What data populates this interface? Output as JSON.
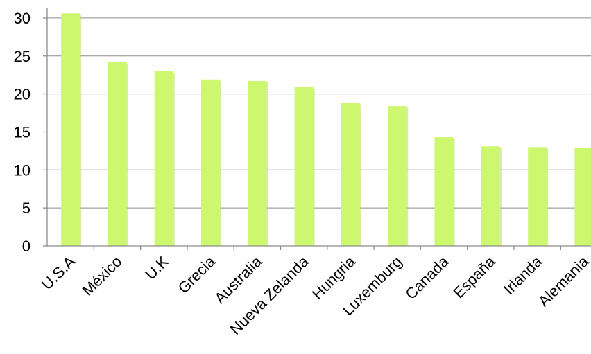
{
  "chart_data": {
    "type": "bar",
    "title": "",
    "xlabel": "",
    "ylabel": "",
    "categories": [
      "U.S.A",
      "México",
      "U.K",
      "Grecia",
      "Australia",
      "Nueva Zelanda",
      "Hungria",
      "Luxemburg",
      "Canada",
      "España",
      "Irlanda",
      "Alemania"
    ],
    "values": [
      30.6,
      24.2,
      23.0,
      21.9,
      21.7,
      20.9,
      18.8,
      18.4,
      14.3,
      13.1,
      13.0,
      12.9
    ],
    "ylim": [
      0,
      30
    ],
    "yticks": [
      "0",
      "5",
      "10",
      "15",
      "20",
      "25",
      "30"
    ],
    "grid": true,
    "legend": "none",
    "colors": {
      "bar": "#ccf76e",
      "bar_shade": "#b4de57",
      "grid": "#8c8c8c",
      "text": "#000000"
    }
  }
}
